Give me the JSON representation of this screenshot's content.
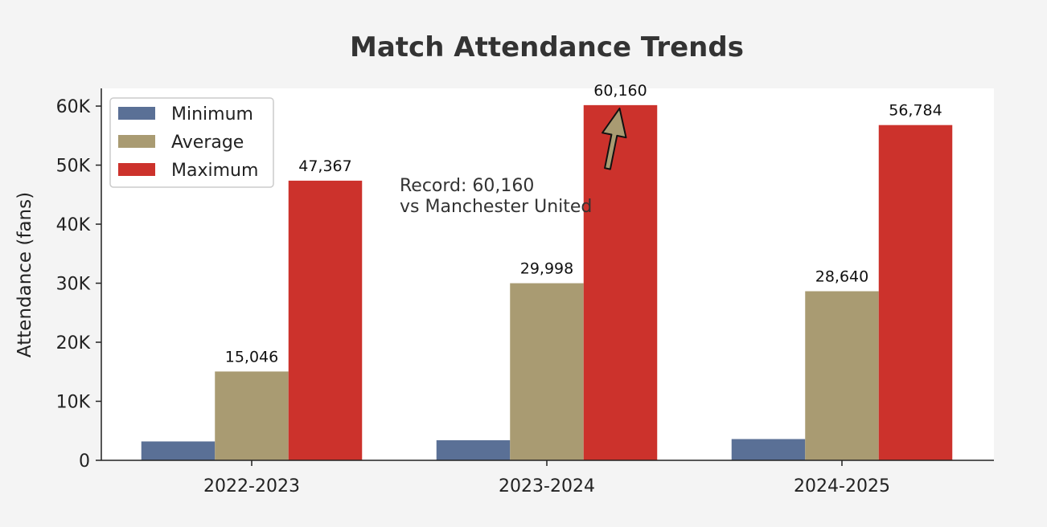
{
  "chart_data": {
    "type": "bar",
    "title": "Match Attendance Trends",
    "xlabel": "",
    "ylabel": "Attendance (fans)",
    "ylim": [
      0,
      63000
    ],
    "yticks": [
      0,
      10000,
      20000,
      30000,
      40000,
      50000,
      60000
    ],
    "ytick_labels": [
      "0",
      "10K",
      "20K",
      "30K",
      "40K",
      "50K",
      "60K"
    ],
    "categories": [
      "2022-2023",
      "2023-2024",
      "2024-2025"
    ],
    "series": [
      {
        "name": "Minimum",
        "color": "#5a7096",
        "values": [
          3200,
          3400,
          3600
        ],
        "labels": [
          "",
          "",
          ""
        ]
      },
      {
        "name": "Average",
        "color": "#a99b72",
        "values": [
          15046,
          29998,
          28640
        ],
        "labels": [
          "15,046",
          "29,998",
          "28,640"
        ]
      },
      {
        "name": "Maximum",
        "color": "#cc322c",
        "values": [
          47367,
          60160,
          56784
        ],
        "labels": [
          "47,367",
          "60,160",
          "56,784"
        ]
      }
    ],
    "legend": {
      "placement": "top-left"
    },
    "grid": false,
    "annotation": {
      "lines": [
        "Record: 60,160",
        "vs Manchester United"
      ],
      "target_category": "2023-2024",
      "target_series": "Maximum",
      "target_value": 60160,
      "arrow_color": "#a99b72"
    }
  }
}
